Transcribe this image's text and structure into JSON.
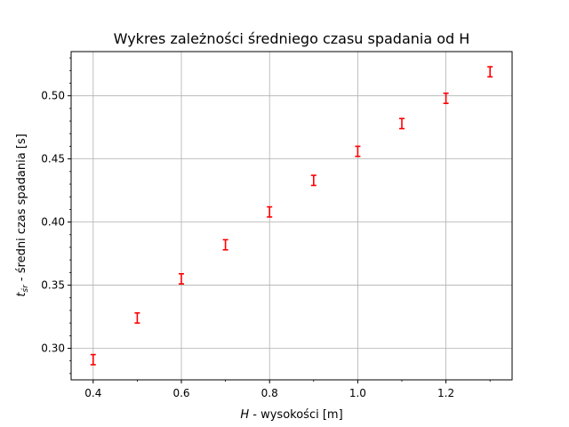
{
  "chart_data": {
    "type": "scatter",
    "title": "Wykres zależności średniego czasu spadania od H",
    "xlabel_italic": "H",
    "xlabel_rest": " - wysokości [m]",
    "ylabel_italic": "t",
    "ylabel_sub": "śr",
    "ylabel_rest": " - średni czas spadania [s]",
    "xlim": [
      0.35,
      1.35
    ],
    "ylim": [
      0.275,
      0.535
    ],
    "xticks": [
      0.4,
      0.6,
      0.8,
      1.0,
      1.2
    ],
    "xtick_labels": [
      "0.4",
      "0.6",
      "0.8",
      "1.0",
      "1.2"
    ],
    "yticks": [
      0.3,
      0.35,
      0.4,
      0.45,
      0.5
    ],
    "ytick_labels": [
      "0.30",
      "0.35",
      "0.40",
      "0.45",
      "0.50"
    ],
    "grid": true,
    "color": "#ff0000",
    "points": [
      {
        "x": 0.4,
        "y": 0.291,
        "err": 0.004
      },
      {
        "x": 0.5,
        "y": 0.324,
        "err": 0.004
      },
      {
        "x": 0.6,
        "y": 0.355,
        "err": 0.004
      },
      {
        "x": 0.7,
        "y": 0.382,
        "err": 0.004
      },
      {
        "x": 0.8,
        "y": 0.408,
        "err": 0.004
      },
      {
        "x": 0.9,
        "y": 0.433,
        "err": 0.004
      },
      {
        "x": 1.0,
        "y": 0.456,
        "err": 0.004
      },
      {
        "x": 1.1,
        "y": 0.478,
        "err": 0.004
      },
      {
        "x": 1.2,
        "y": 0.498,
        "err": 0.004
      },
      {
        "x": 1.3,
        "y": 0.519,
        "err": 0.004
      }
    ]
  }
}
